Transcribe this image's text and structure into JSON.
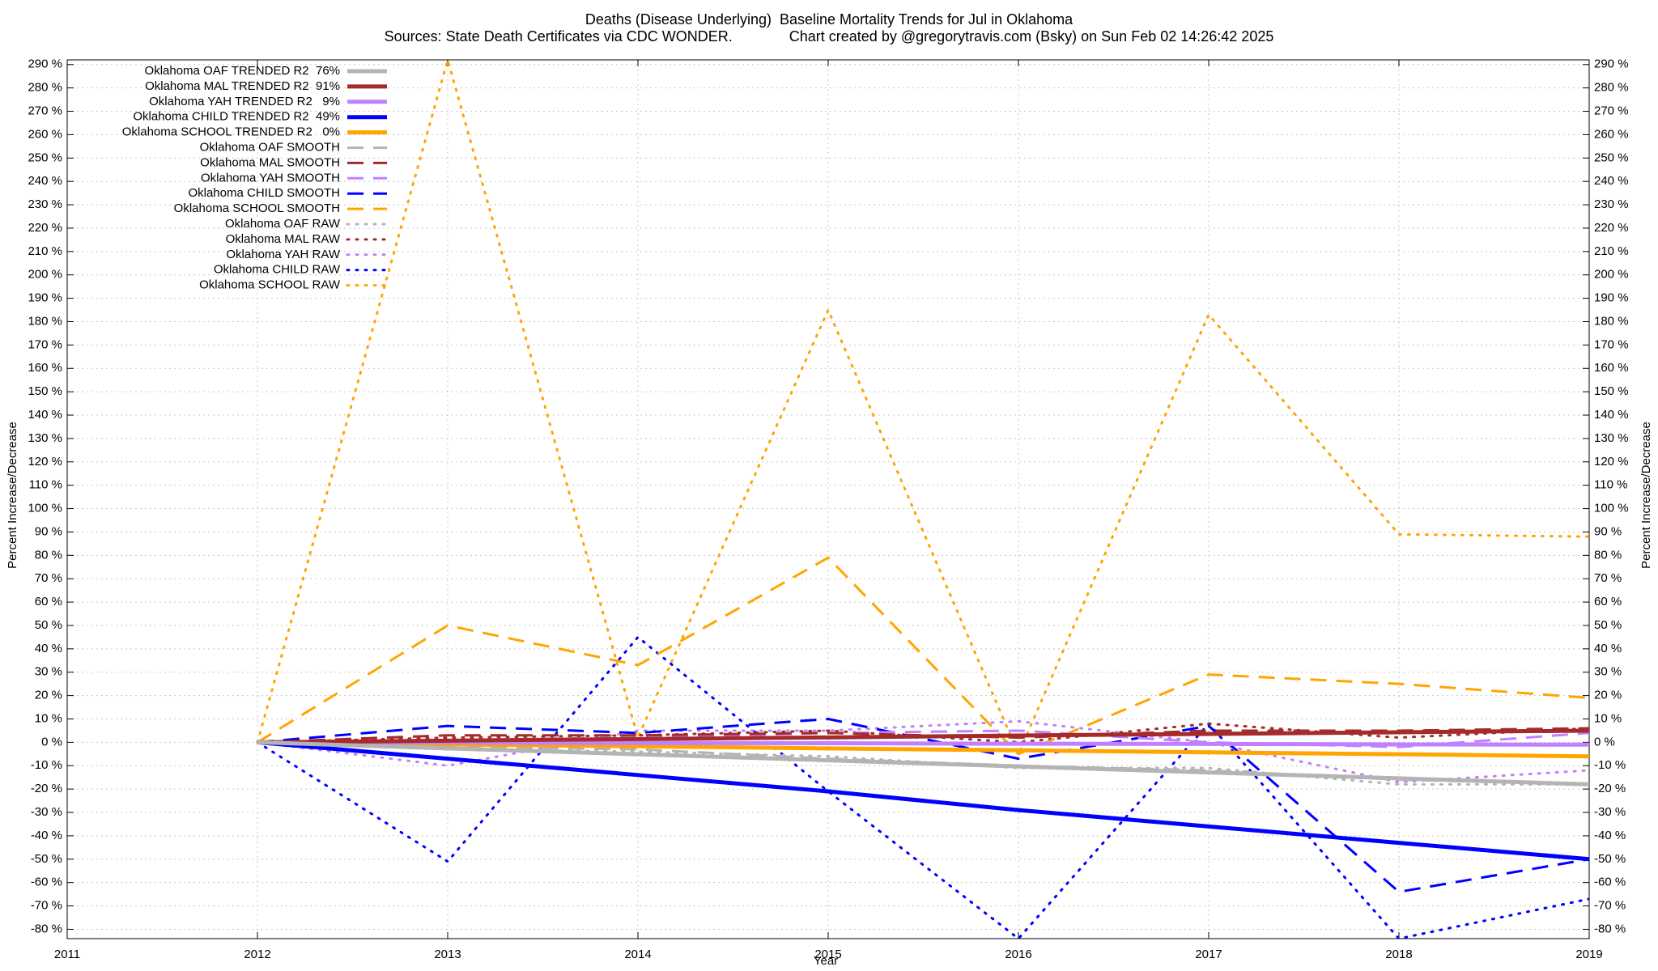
{
  "chart_data": {
    "type": "line",
    "title": "Deaths (Disease Underlying)  Baseline Mortality Trends for Jul in Oklahoma",
    "subtitle": "Sources: State Death Certificates via CDC WONDER.              Chart created by @gregorytravis.com (Bsky) on Sun Feb 02 14:26:42 2025",
    "x_label": "Year",
    "y_label": "Percent Increase/Decrease",
    "x": [
      2012,
      2013,
      2014,
      2015,
      2016,
      2017,
      2018,
      2019
    ],
    "xlim": [
      2011,
      2019
    ],
    "xticks": [
      2011,
      2012,
      2013,
      2014,
      2015,
      2016,
      2017,
      2018,
      2019
    ],
    "ylim": [
      -84,
      292
    ],
    "yticks": [
      {
        "value": -80,
        "label": "-80 %"
      },
      {
        "value": -70,
        "label": "-70 %"
      },
      {
        "value": -60,
        "label": "-60 %"
      },
      {
        "value": -50,
        "label": "-50 %"
      },
      {
        "value": -40,
        "label": "-40 %"
      },
      {
        "value": -30,
        "label": "-30 %"
      },
      {
        "value": -20,
        "label": "-20 %"
      },
      {
        "value": -10,
        "label": "-10 %"
      },
      {
        "value": 0,
        "label": "0 %"
      },
      {
        "value": 10,
        "label": "10 %"
      },
      {
        "value": 20,
        "label": "20 %"
      },
      {
        "value": 30,
        "label": "30 %"
      },
      {
        "value": 40,
        "label": "40 %"
      },
      {
        "value": 50,
        "label": "50 %"
      },
      {
        "value": 60,
        "label": "60 %"
      },
      {
        "value": 70,
        "label": "70 %"
      },
      {
        "value": 80,
        "label": "80 %"
      },
      {
        "value": 90,
        "label": "90 %"
      },
      {
        "value": 100,
        "label": "100 %"
      },
      {
        "value": 110,
        "label": "110 %"
      },
      {
        "value": 120,
        "label": "120 %"
      },
      {
        "value": 130,
        "label": "130 %"
      },
      {
        "value": 140,
        "label": "140 %"
      },
      {
        "value": 150,
        "label": "150 %"
      },
      {
        "value": 160,
        "label": "160 %"
      },
      {
        "value": 170,
        "label": "170 %"
      },
      {
        "value": 180,
        "label": "180 %"
      },
      {
        "value": 190,
        "label": "190 %"
      },
      {
        "value": 200,
        "label": "200 %"
      },
      {
        "value": 210,
        "label": "210 %"
      },
      {
        "value": 220,
        "label": "220 %"
      },
      {
        "value": 230,
        "label": "230 %"
      },
      {
        "value": 240,
        "label": "240 %"
      },
      {
        "value": 250,
        "label": "250 %"
      },
      {
        "value": 260,
        "label": "260 %"
      },
      {
        "value": 270,
        "label": "270 %"
      },
      {
        "value": 280,
        "label": "280 %"
      },
      {
        "value": 290,
        "label": "290 %"
      }
    ],
    "grid": true,
    "legend": "top-left",
    "series": [
      {
        "name": "Oklahoma OAF TRENDED R2  76%",
        "color": "#b4b4b4",
        "line_style": "solid",
        "values": [
          0,
          -2.6,
          -5.1,
          -7.7,
          -10.3,
          -12.9,
          -15.4,
          -18
        ]
      },
      {
        "name": "Oklahoma MAL TRENDED R2  91%",
        "color": "#a52a2a",
        "line_style": "solid",
        "values": [
          0,
          0.7,
          1.4,
          2.1,
          2.9,
          3.6,
          4.3,
          5
        ]
      },
      {
        "name": "Oklahoma YAH TRENDED R2   9%",
        "color": "#c080ff",
        "line_style": "solid",
        "values": [
          0,
          -0.1,
          -0.3,
          -0.4,
          -0.6,
          -0.7,
          -0.9,
          -1
        ]
      },
      {
        "name": "Oklahoma CHILD TRENDED R2  49%",
        "color": "#0000ff",
        "line_style": "solid",
        "values": [
          0,
          -7,
          -14,
          -21,
          -29,
          -36,
          -43,
          -50
        ]
      },
      {
        "name": "Oklahoma SCHOOL TRENDED R2   0%",
        "color": "#ffa500",
        "line_style": "solid",
        "values": [
          0,
          -0.9,
          -1.7,
          -2.6,
          -3.4,
          -4.3,
          -5.1,
          -6
        ]
      },
      {
        "name": "Oklahoma OAF SMOOTH",
        "color": "#b4b4b4",
        "line_style": "dashed",
        "values": [
          0,
          -2,
          -3,
          -7,
          -10,
          -12,
          -16,
          -18
        ]
      },
      {
        "name": "Oklahoma MAL SMOOTH",
        "color": "#a52a2a",
        "line_style": "dashed",
        "values": [
          0,
          3,
          3,
          4,
          2,
          5,
          5,
          6
        ]
      },
      {
        "name": "Oklahoma YAH SMOOTH",
        "color": "#c080ff",
        "line_style": "dashed",
        "values": [
          0,
          1,
          2,
          4,
          5,
          0,
          -2,
          4
        ]
      },
      {
        "name": "Oklahoma CHILD SMOOTH",
        "color": "#0000ff",
        "line_style": "dashed",
        "values": [
          0,
          7,
          4,
          10,
          -7,
          7,
          -64,
          -50
        ]
      },
      {
        "name": "Oklahoma SCHOOL SMOOTH",
        "color": "#ffa500",
        "line_style": "dashed",
        "values": [
          0,
          50,
          33,
          79,
          -5,
          29,
          25,
          19
        ]
      },
      {
        "name": "Oklahoma OAF RAW",
        "color": "#b4b4b4",
        "line_style": "dotted",
        "values": [
          0,
          -3,
          -4,
          -6,
          -11,
          -11,
          -18,
          -18
        ]
      },
      {
        "name": "Oklahoma MAL RAW",
        "color": "#a52a2a",
        "line_style": "dotted",
        "values": [
          0,
          2,
          3,
          5,
          0,
          8,
          2,
          6
        ]
      },
      {
        "name": "Oklahoma YAH RAW",
        "color": "#c080ff",
        "line_style": "dotted",
        "values": [
          0,
          -10,
          5,
          5,
          9,
          0,
          -17,
          -12
        ]
      },
      {
        "name": "Oklahoma CHILD RAW",
        "color": "#0000ff",
        "line_style": "dotted",
        "values": [
          0,
          -51,
          45,
          -21,
          -84,
          8,
          -84,
          -67
        ]
      },
      {
        "name": "Oklahoma SCHOOL RAW",
        "color": "#ffa500",
        "line_style": "dotted",
        "values": [
          0,
          292,
          2,
          185,
          -5,
          183,
          89,
          88
        ]
      }
    ]
  }
}
